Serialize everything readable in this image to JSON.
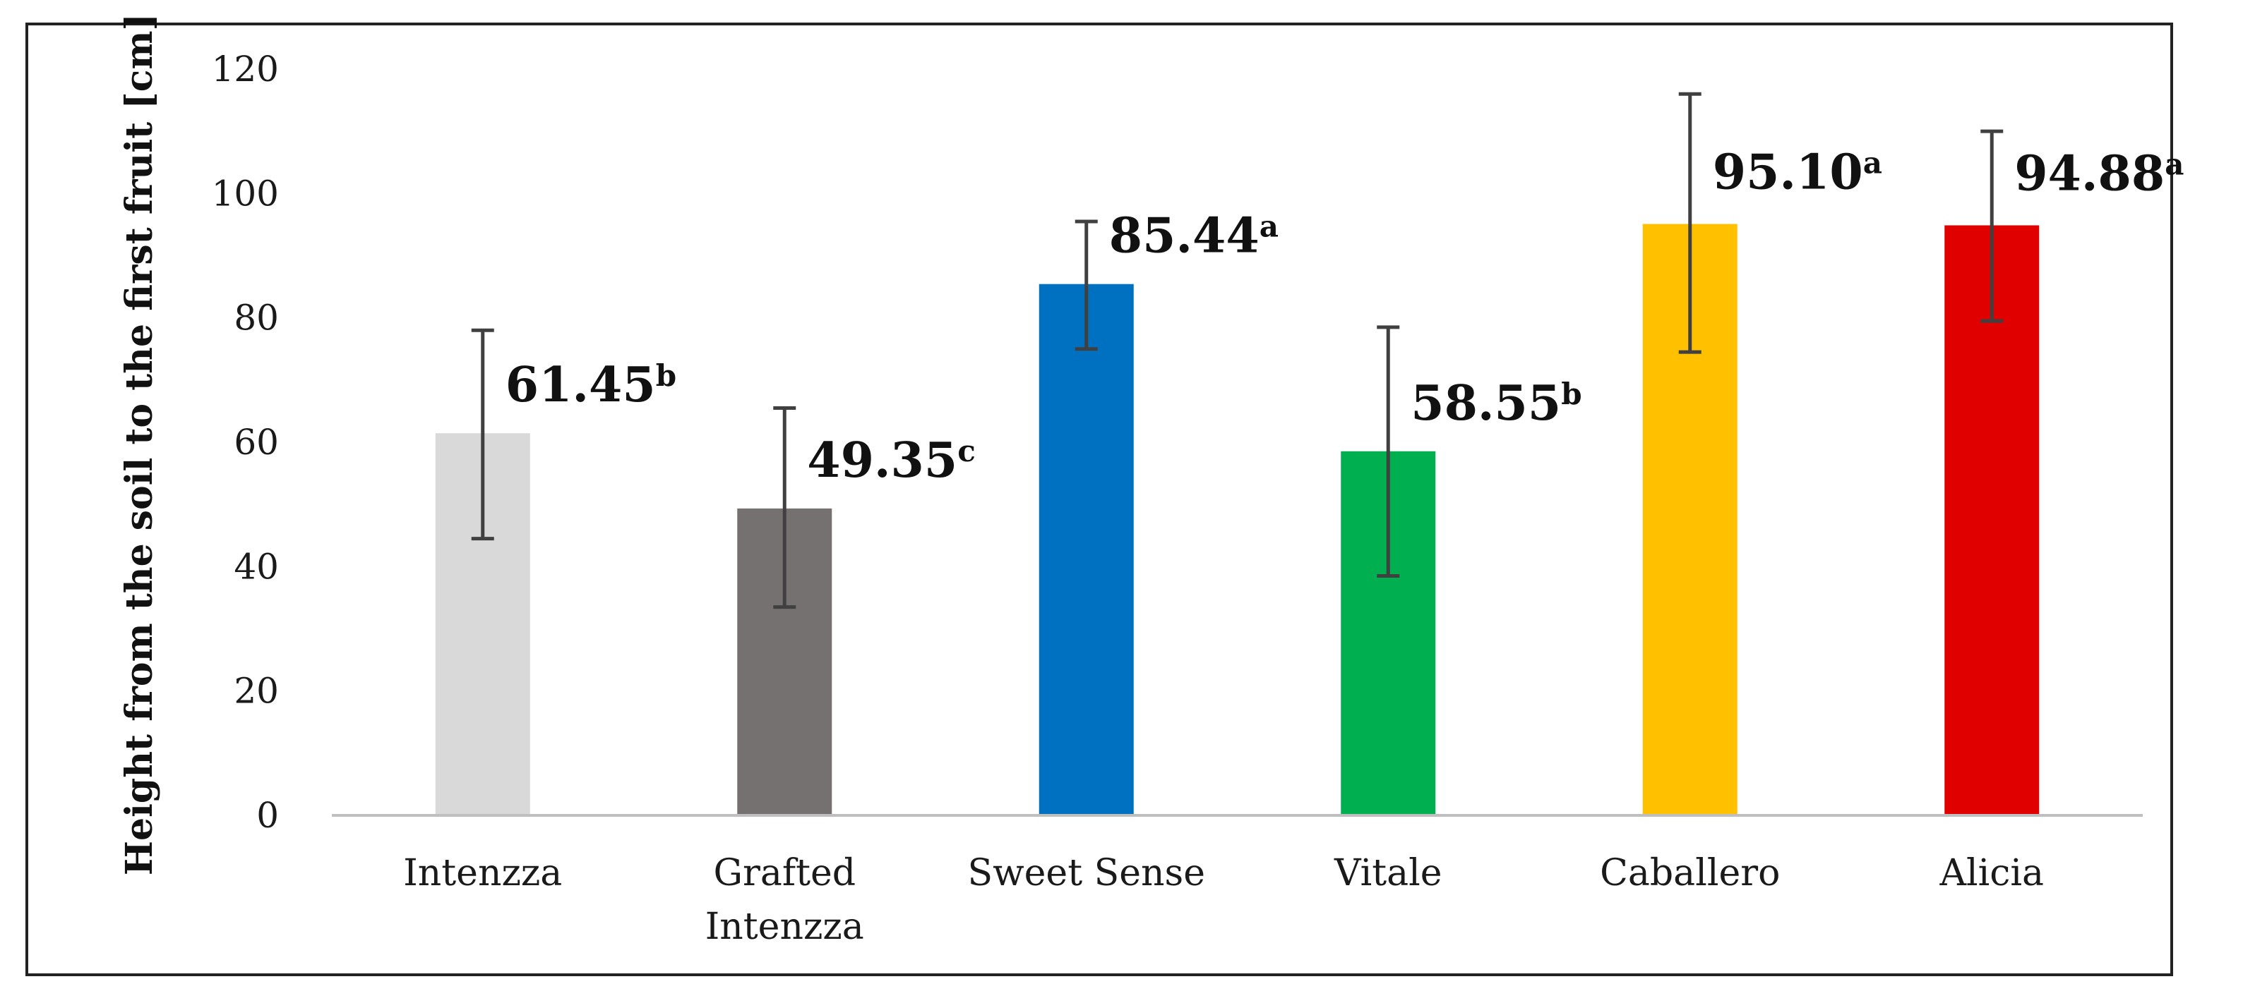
{
  "chart_data": {
    "type": "bar",
    "title": "",
    "xlabel": "",
    "ylabel": "Height from the soil to the first fruit [cm]",
    "ylim": [
      0,
      120
    ],
    "yticks": [
      0,
      20,
      40,
      60,
      80,
      100,
      120
    ],
    "grid": false,
    "legend": "none",
    "categories": [
      [
        "Intenzza"
      ],
      [
        "Grafted",
        "Intenzza"
      ],
      [
        "Sweet Sense"
      ],
      [
        "Vitale"
      ],
      [
        "Caballero"
      ],
      [
        "Alicia"
      ]
    ],
    "values": [
      61.45,
      49.35,
      85.44,
      58.55,
      95.1,
      94.88
    ],
    "error_low": [
      44.5,
      33.5,
      75.0,
      38.5,
      74.5,
      79.5
    ],
    "error_high": [
      78.0,
      65.5,
      95.5,
      78.5,
      116.0,
      110.0
    ],
    "value_labels": [
      "61.45",
      "49.35",
      "85.44",
      "58.55",
      "95.10",
      "94.88"
    ],
    "significance": [
      "b",
      "c",
      "a",
      "b",
      "a",
      "a"
    ],
    "colors": [
      "#d9d9d9",
      "#767171",
      "#0070c0",
      "#00b050",
      "#ffc000",
      "#e00000"
    ],
    "axis_color": "#bfbfbf",
    "error_bar_color": "#404040"
  }
}
